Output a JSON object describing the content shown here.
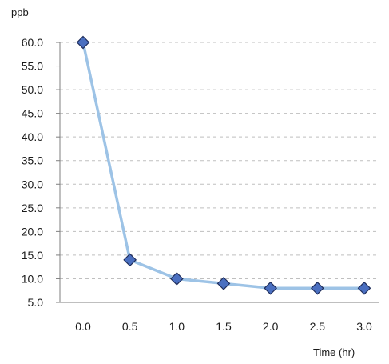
{
  "chart_data": {
    "type": "line",
    "title": "",
    "ylabel": "ppb",
    "xlabel": "Time (hr)",
    "x": [
      0.0,
      0.5,
      1.0,
      1.5,
      2.0,
      2.5,
      3.0
    ],
    "x_tick_labels": [
      "0.0",
      "0.5",
      "1.0",
      "1.5",
      "2.0",
      "2.5",
      "3.0"
    ],
    "y_tick_labels": [
      "60.0",
      "55.0",
      "50.0",
      "45.0",
      "40.0",
      "35.0",
      "30.0",
      "25.0",
      "20.0",
      "15.0",
      "10.0",
      "5.0"
    ],
    "ylim": [
      5.0,
      60.0
    ],
    "y_ticks": [
      60,
      55,
      50,
      45,
      40,
      35,
      30,
      25,
      20,
      15,
      10,
      5
    ],
    "grid": "horizontal dashed",
    "legend": "none",
    "series": [
      {
        "values": [
          60.0,
          14.0,
          10.0,
          9.0,
          8.0,
          8.0,
          8.0
        ],
        "line_color": "#9dc3e6",
        "marker": "diamond",
        "marker_fill": "#4a6fc0",
        "marker_stroke": "#1f2d5a"
      }
    ],
    "axis_color": "#7f7f7f",
    "grid_color": "#bfbfbf",
    "text_color": "#1a1a1a"
  }
}
